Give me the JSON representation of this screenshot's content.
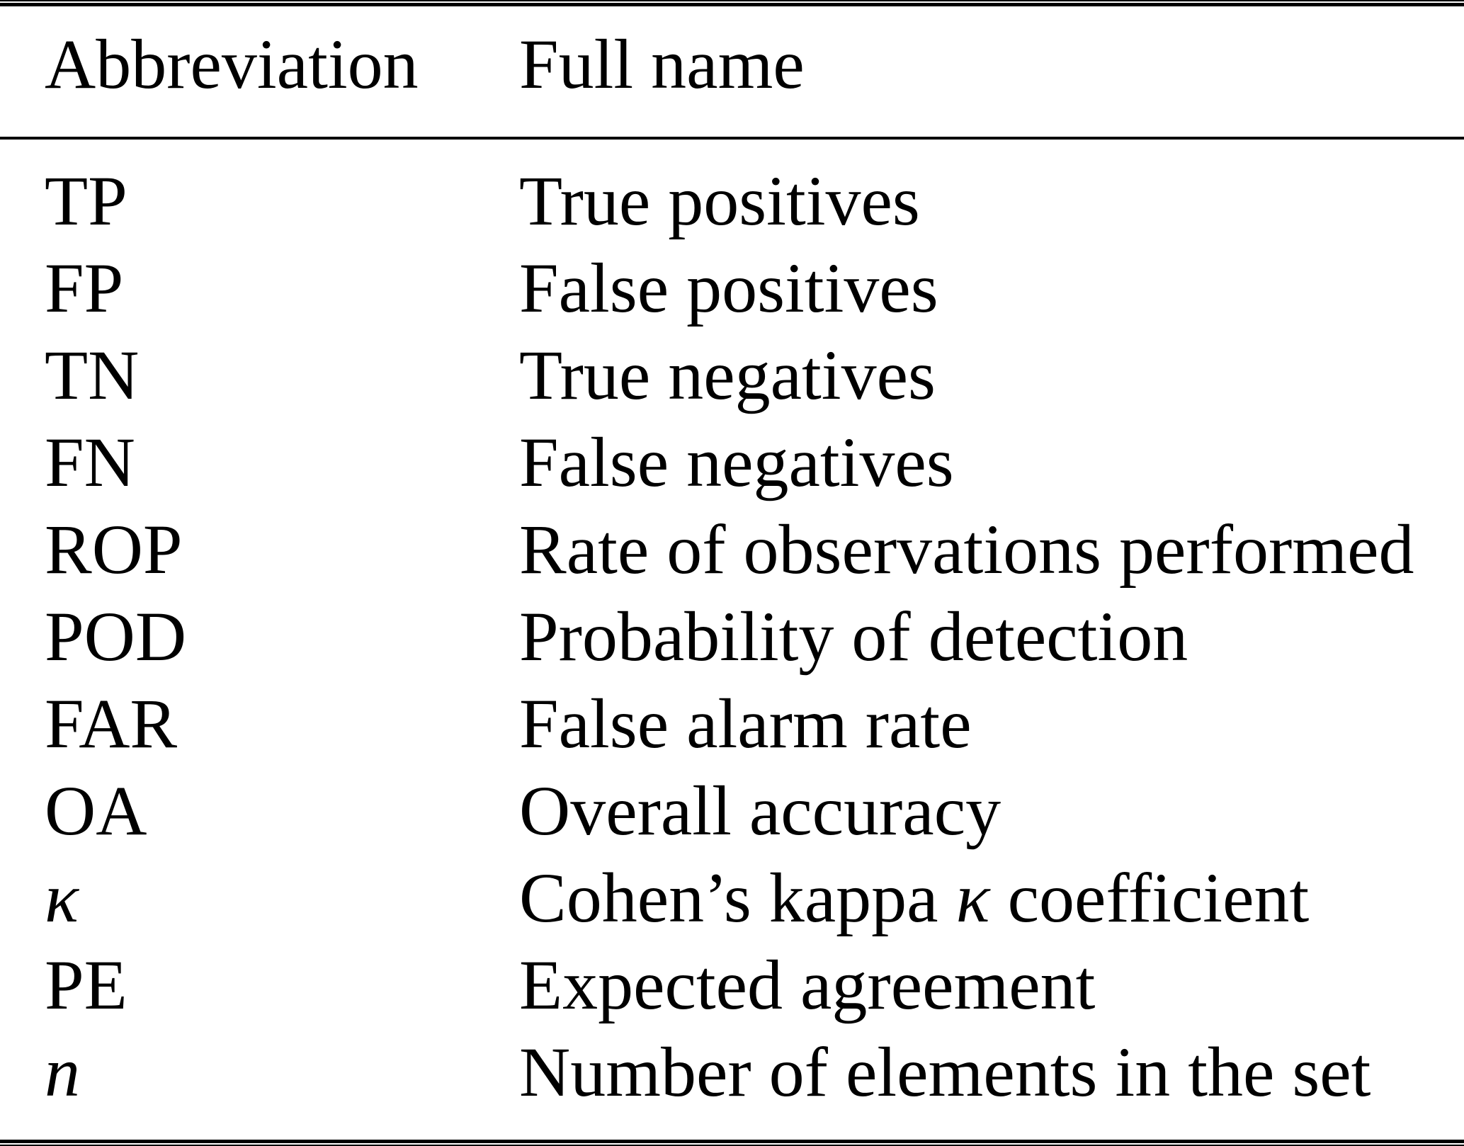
{
  "table": {
    "columns": [
      {
        "label": "Abbreviation"
      },
      {
        "label": "Full name"
      }
    ],
    "rows": [
      {
        "abbr": "TP",
        "full": "True positives"
      },
      {
        "abbr": "FP",
        "full": "False positives"
      },
      {
        "abbr": "TN",
        "full": "True negatives"
      },
      {
        "abbr": "FN",
        "full": "False negatives"
      },
      {
        "abbr": "ROP",
        "full": "Rate of observations performed"
      },
      {
        "abbr": "POD",
        "full": "Probability of detection"
      },
      {
        "abbr": "FAR",
        "full": "False alarm rate"
      },
      {
        "abbr": "OA",
        "full": "Overall accuracy"
      },
      {
        "abbr": "κ",
        "abbr_style": "italic",
        "full_pre": "Cohen’s kappa ",
        "full_sym": "κ",
        "full_post": " coefficient"
      },
      {
        "abbr": "PE",
        "full": "Expected agreement"
      },
      {
        "abbr": "n",
        "abbr_style": "italic",
        "full": "Number of elements in the set"
      }
    ],
    "colors": {
      "text": "#000000",
      "background": "#ffffff",
      "rule": "#000000"
    }
  }
}
